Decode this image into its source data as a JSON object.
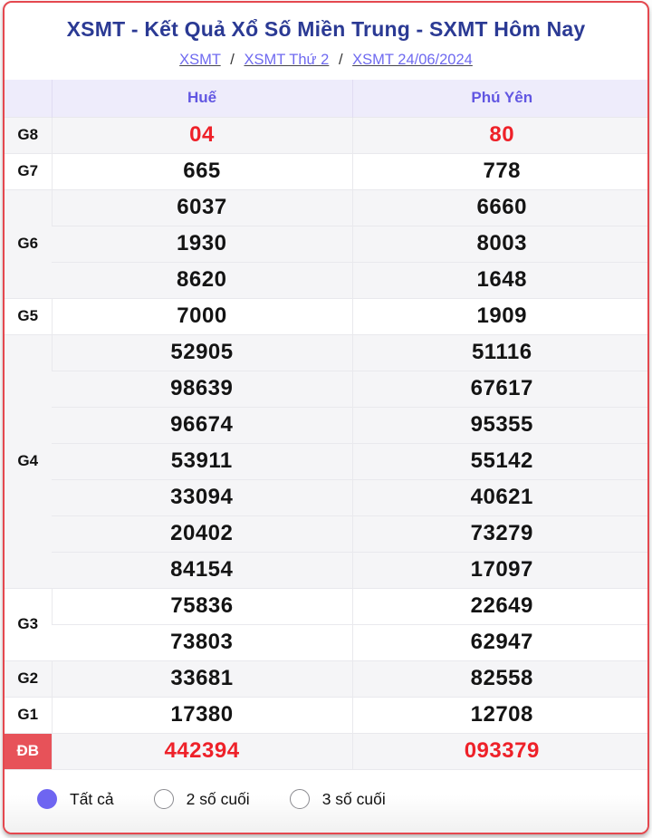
{
  "header": {
    "title": "XSMT - Kết Quả Xổ Số Miền Trung - SXMT Hôm Nay",
    "breadcrumb": [
      "XSMT",
      "XSMT Thứ 2",
      "XSMT 24/06/2024"
    ],
    "separator": "/"
  },
  "results": {
    "columns": [
      "Huế",
      "Phú Yên"
    ],
    "g8": {
      "label": "G8",
      "hue": "04",
      "phuyen": "80"
    },
    "g7": {
      "label": "G7",
      "hue": "665",
      "phuyen": "778"
    },
    "g6": {
      "label": "G6",
      "hue": [
        "6037",
        "1930",
        "8620"
      ],
      "phuyen": [
        "6660",
        "8003",
        "1648"
      ]
    },
    "g5": {
      "label": "G5",
      "hue": "7000",
      "phuyen": "1909"
    },
    "g4": {
      "label": "G4",
      "hue": [
        "52905",
        "98639",
        "96674",
        "53911",
        "33094",
        "20402",
        "84154"
      ],
      "phuyen": [
        "51116",
        "67617",
        "95355",
        "55142",
        "40621",
        "73279",
        "17097"
      ]
    },
    "g3": {
      "label": "G3",
      "hue": [
        "75836",
        "73803"
      ],
      "phuyen": [
        "22649",
        "62947"
      ]
    },
    "g2": {
      "label": "G2",
      "hue": "33681",
      "phuyen": "82558"
    },
    "g1": {
      "label": "G1",
      "hue": "17380",
      "phuyen": "12708"
    },
    "db": {
      "label": "ĐB",
      "hue": "442394",
      "phuyen": "093379"
    }
  },
  "filters": {
    "selected": "Tất cả",
    "options": [
      {
        "label": "Tất cả"
      },
      {
        "label": "2 số cuối"
      },
      {
        "label": "3 số cuối"
      }
    ]
  },
  "colors": {
    "card_border_red": "#e4484f",
    "title_navy": "#2b3a94",
    "link_purple": "#6f6af0",
    "column_header_purple": "#6156e2",
    "column_header_bg": "#eeecfb",
    "value_red": "#ee2129",
    "db_label_bg": "#e75259",
    "shade_row_bg": "#f5f5f7",
    "radio_selected_purple": "#6e65f1"
  }
}
